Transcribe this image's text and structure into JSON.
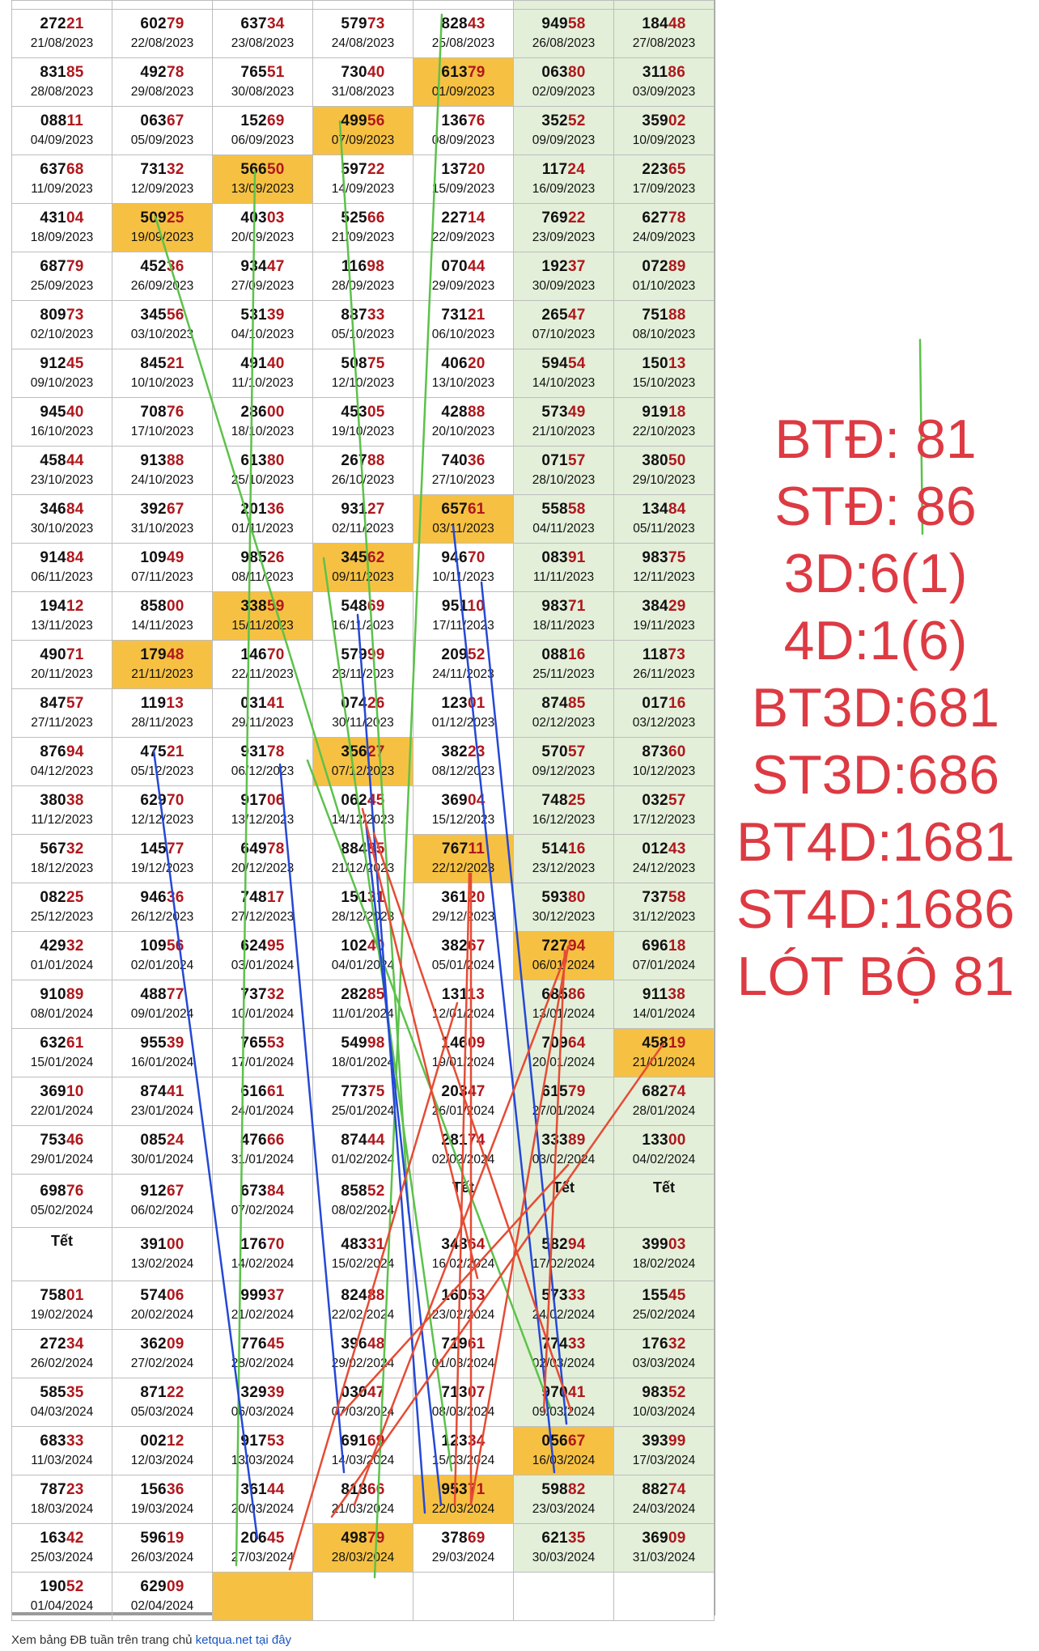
{
  "colors": {
    "number_tail": "#b0171c",
    "highlight": "#f6c143",
    "weekend": "#e3efd9",
    "summary_text": "#dd3a43",
    "line_green": "#5cc24a",
    "line_blue": "#2548d6",
    "line_red": "#e64b34"
  },
  "rows": [
    [
      {
        "num": "27221",
        "date": "21/08/2023"
      },
      {
        "num": "60279",
        "date": "22/08/2023"
      },
      {
        "num": "63734",
        "date": "23/08/2023"
      },
      {
        "num": "57973",
        "date": "24/08/2023"
      },
      {
        "num": "82843",
        "date": "25/08/2023"
      },
      {
        "num": "94958",
        "date": "26/08/2023"
      },
      {
        "num": "18448",
        "date": "27/08/2023"
      }
    ],
    [
      {
        "num": "83185",
        "date": "28/08/2023"
      },
      {
        "num": "49278",
        "date": "29/08/2023"
      },
      {
        "num": "76551",
        "date": "30/08/2023"
      },
      {
        "num": "73040",
        "date": "31/08/2023"
      },
      {
        "num": "61379",
        "date": "01/09/2023",
        "hl": true
      },
      {
        "num": "06380",
        "date": "02/09/2023"
      },
      {
        "num": "31186",
        "date": "03/09/2023"
      }
    ],
    [
      {
        "num": "08811",
        "date": "04/09/2023"
      },
      {
        "num": "06367",
        "date": "05/09/2023"
      },
      {
        "num": "15269",
        "date": "06/09/2023"
      },
      {
        "num": "49956",
        "date": "07/09/2023",
        "hl": true
      },
      {
        "num": "13676",
        "date": "08/09/2023"
      },
      {
        "num": "35252",
        "date": "09/09/2023"
      },
      {
        "num": "35902",
        "date": "10/09/2023"
      }
    ],
    [
      {
        "num": "63768",
        "date": "11/09/2023"
      },
      {
        "num": "73132",
        "date": "12/09/2023"
      },
      {
        "num": "56650",
        "date": "13/09/2023",
        "hl": true
      },
      {
        "num": "59722",
        "date": "14/09/2023"
      },
      {
        "num": "13720",
        "date": "15/09/2023"
      },
      {
        "num": "11724",
        "date": "16/09/2023"
      },
      {
        "num": "22365",
        "date": "17/09/2023"
      }
    ],
    [
      {
        "num": "43104",
        "date": "18/09/2023"
      },
      {
        "num": "50925",
        "date": "19/09/2023",
        "hl": true
      },
      {
        "num": "40303",
        "date": "20/09/2023"
      },
      {
        "num": "52566",
        "date": "21/09/2023"
      },
      {
        "num": "22714",
        "date": "22/09/2023"
      },
      {
        "num": "76922",
        "date": "23/09/2023"
      },
      {
        "num": "62778",
        "date": "24/09/2023"
      }
    ],
    [
      {
        "num": "68779",
        "date": "25/09/2023"
      },
      {
        "num": "45236",
        "date": "26/09/2023"
      },
      {
        "num": "93447",
        "date": "27/09/2023"
      },
      {
        "num": "11698",
        "date": "28/09/2023"
      },
      {
        "num": "07044",
        "date": "29/09/2023"
      },
      {
        "num": "19237",
        "date": "30/09/2023"
      },
      {
        "num": "07289",
        "date": "01/10/2023"
      }
    ],
    [
      {
        "num": "80973",
        "date": "02/10/2023"
      },
      {
        "num": "34556",
        "date": "03/10/2023"
      },
      {
        "num": "53139",
        "date": "04/10/2023"
      },
      {
        "num": "88733",
        "date": "05/10/2023"
      },
      {
        "num": "73121",
        "date": "06/10/2023"
      },
      {
        "num": "26547",
        "date": "07/10/2023"
      },
      {
        "num": "75188",
        "date": "08/10/2023"
      }
    ],
    [
      {
        "num": "91245",
        "date": "09/10/2023"
      },
      {
        "num": "84521",
        "date": "10/10/2023"
      },
      {
        "num": "49140",
        "date": "11/10/2023"
      },
      {
        "num": "50875",
        "date": "12/10/2023"
      },
      {
        "num": "40620",
        "date": "13/10/2023"
      },
      {
        "num": "59454",
        "date": "14/10/2023"
      },
      {
        "num": "15013",
        "date": "15/10/2023"
      }
    ],
    [
      {
        "num": "94540",
        "date": "16/10/2023"
      },
      {
        "num": "70876",
        "date": "17/10/2023"
      },
      {
        "num": "28600",
        "date": "18/10/2023"
      },
      {
        "num": "45305",
        "date": "19/10/2023"
      },
      {
        "num": "42888",
        "date": "20/10/2023"
      },
      {
        "num": "57349",
        "date": "21/10/2023"
      },
      {
        "num": "91918",
        "date": "22/10/2023"
      }
    ],
    [
      {
        "num": "45844",
        "date": "23/10/2023"
      },
      {
        "num": "91388",
        "date": "24/10/2023"
      },
      {
        "num": "61380",
        "date": "25/10/2023"
      },
      {
        "num": "26788",
        "date": "26/10/2023"
      },
      {
        "num": "74036",
        "date": "27/10/2023"
      },
      {
        "num": "07157",
        "date": "28/10/2023"
      },
      {
        "num": "38050",
        "date": "29/10/2023"
      }
    ],
    [
      {
        "num": "34684",
        "date": "30/10/2023"
      },
      {
        "num": "39267",
        "date": "31/10/2023"
      },
      {
        "num": "20136",
        "date": "01/11/2023"
      },
      {
        "num": "93127",
        "date": "02/11/2023"
      },
      {
        "num": "65761",
        "date": "03/11/2023",
        "hl": true
      },
      {
        "num": "55858",
        "date": "04/11/2023"
      },
      {
        "num": "13484",
        "date": "05/11/2023"
      }
    ],
    [
      {
        "num": "91484",
        "date": "06/11/2023"
      },
      {
        "num": "10949",
        "date": "07/11/2023"
      },
      {
        "num": "98526",
        "date": "08/11/2023"
      },
      {
        "num": "34562",
        "date": "09/11/2023",
        "hl": true
      },
      {
        "num": "94670",
        "date": "10/11/2023"
      },
      {
        "num": "08391",
        "date": "11/11/2023"
      },
      {
        "num": "98375",
        "date": "12/11/2023"
      }
    ],
    [
      {
        "num": "19412",
        "date": "13/11/2023"
      },
      {
        "num": "85800",
        "date": "14/11/2023"
      },
      {
        "num": "33859",
        "date": "15/11/2023",
        "hl": true
      },
      {
        "num": "54869",
        "date": "16/11/2023"
      },
      {
        "num": "95110",
        "date": "17/11/2023"
      },
      {
        "num": "98371",
        "date": "18/11/2023"
      },
      {
        "num": "38429",
        "date": "19/11/2023"
      }
    ],
    [
      {
        "num": "49071",
        "date": "20/11/2023"
      },
      {
        "num": "17948",
        "date": "21/11/2023",
        "hl": true
      },
      {
        "num": "14670",
        "date": "22/11/2023"
      },
      {
        "num": "57999",
        "date": "23/11/2023"
      },
      {
        "num": "20952",
        "date": "24/11/2023"
      },
      {
        "num": "08816",
        "date": "25/11/2023"
      },
      {
        "num": "11873",
        "date": "26/11/2023"
      }
    ],
    [
      {
        "num": "84757",
        "date": "27/11/2023"
      },
      {
        "num": "11913",
        "date": "28/11/2023"
      },
      {
        "num": "03141",
        "date": "29/11/2023"
      },
      {
        "num": "07426",
        "date": "30/11/2023"
      },
      {
        "num": "12301",
        "date": "01/12/2023"
      },
      {
        "num": "87485",
        "date": "02/12/2023"
      },
      {
        "num": "01716",
        "date": "03/12/2023"
      }
    ],
    [
      {
        "num": "87694",
        "date": "04/12/2023"
      },
      {
        "num": "47521",
        "date": "05/12/2023"
      },
      {
        "num": "93178",
        "date": "06/12/2023"
      },
      {
        "num": "35627",
        "date": "07/12/2023",
        "hl": true
      },
      {
        "num": "38223",
        "date": "08/12/2023"
      },
      {
        "num": "57057",
        "date": "09/12/2023"
      },
      {
        "num": "87360",
        "date": "10/12/2023"
      }
    ],
    [
      {
        "num": "38038",
        "date": "11/12/2023"
      },
      {
        "num": "62970",
        "date": "12/12/2023"
      },
      {
        "num": "91706",
        "date": "13/12/2023"
      },
      {
        "num": "06245",
        "date": "14/12/2023"
      },
      {
        "num": "36904",
        "date": "15/12/2023"
      },
      {
        "num": "74825",
        "date": "16/12/2023"
      },
      {
        "num": "03257",
        "date": "17/12/2023"
      }
    ],
    [
      {
        "num": "56732",
        "date": "18/12/2023"
      },
      {
        "num": "14577",
        "date": "19/12/2023"
      },
      {
        "num": "64978",
        "date": "20/12/2023"
      },
      {
        "num": "88485",
        "date": "21/12/2023"
      },
      {
        "num": "76711",
        "date": "22/12/2023",
        "hl": true
      },
      {
        "num": "51416",
        "date": "23/12/2023"
      },
      {
        "num": "01243",
        "date": "24/12/2023"
      }
    ],
    [
      {
        "num": "08225",
        "date": "25/12/2023"
      },
      {
        "num": "94636",
        "date": "26/12/2023"
      },
      {
        "num": "74817",
        "date": "27/12/2023"
      },
      {
        "num": "15131",
        "date": "28/12/2023"
      },
      {
        "num": "36120",
        "date": "29/12/2023"
      },
      {
        "num": "59380",
        "date": "30/12/2023"
      },
      {
        "num": "73758",
        "date": "31/12/2023"
      }
    ],
    [
      {
        "num": "42932",
        "date": "01/01/2024"
      },
      {
        "num": "10956",
        "date": "02/01/2024"
      },
      {
        "num": "62495",
        "date": "03/01/2024"
      },
      {
        "num": "10240",
        "date": "04/01/2024"
      },
      {
        "num": "38267",
        "date": "05/01/2024"
      },
      {
        "num": "72794",
        "date": "06/01/2024",
        "hl": true
      },
      {
        "num": "69618",
        "date": "07/01/2024"
      }
    ],
    [
      {
        "num": "91089",
        "date": "08/01/2024"
      },
      {
        "num": "48877",
        "date": "09/01/2024"
      },
      {
        "num": "73732",
        "date": "10/01/2024"
      },
      {
        "num": "28285",
        "date": "11/01/2024"
      },
      {
        "num": "13113",
        "date": "12/01/2024"
      },
      {
        "num": "68586",
        "date": "13/01/2024"
      },
      {
        "num": "91138",
        "date": "14/01/2024"
      }
    ],
    [
      {
        "num": "63261",
        "date": "15/01/2024"
      },
      {
        "num": "95539",
        "date": "16/01/2024"
      },
      {
        "num": "76553",
        "date": "17/01/2024"
      },
      {
        "num": "54998",
        "date": "18/01/2024"
      },
      {
        "num": "14609",
        "date": "19/01/2024"
      },
      {
        "num": "70964",
        "date": "20/01/2024"
      },
      {
        "num": "45819",
        "date": "21/01/2024",
        "hl": true
      }
    ],
    [
      {
        "num": "36910",
        "date": "22/01/2024"
      },
      {
        "num": "87441",
        "date": "23/01/2024"
      },
      {
        "num": "61661",
        "date": "24/01/2024"
      },
      {
        "num": "77375",
        "date": "25/01/2024"
      },
      {
        "num": "20347",
        "date": "26/01/2024"
      },
      {
        "num": "61579",
        "date": "27/01/2024"
      },
      {
        "num": "68274",
        "date": "28/01/2024"
      }
    ],
    [
      {
        "num": "75346",
        "date": "29/01/2024"
      },
      {
        "num": "08524",
        "date": "30/01/2024"
      },
      {
        "num": "47666",
        "date": "31/01/2024"
      },
      {
        "num": "87444",
        "date": "01/02/2024"
      },
      {
        "num": "28174",
        "date": "02/02/2024"
      },
      {
        "num": "33389",
        "date": "03/02/2024"
      },
      {
        "num": "13300",
        "date": "04/02/2024"
      }
    ],
    [
      {
        "num": "69876",
        "date": "05/02/2024"
      },
      {
        "num": "91267",
        "date": "06/02/2024"
      },
      {
        "num": "67384",
        "date": "07/02/2024"
      },
      {
        "num": "85852",
        "date": "08/02/2024"
      },
      {
        "tet": "Tết"
      },
      {
        "tet": "Tết"
      },
      {
        "tet": "Tết"
      }
    ],
    [
      {
        "tet": "Tết"
      },
      {
        "num": "39100",
        "date": "13/02/2024"
      },
      {
        "num": "17670",
        "date": "14/02/2024"
      },
      {
        "num": "48331",
        "date": "15/02/2024"
      },
      {
        "num": "34864",
        "date": "16/02/2024"
      },
      {
        "num": "58294",
        "date": "17/02/2024"
      },
      {
        "num": "39903",
        "date": "18/02/2024"
      }
    ],
    [
      {
        "num": "75801",
        "date": "19/02/2024"
      },
      {
        "num": "57406",
        "date": "20/02/2024"
      },
      {
        "num": "99937",
        "date": "21/02/2024"
      },
      {
        "num": "82488",
        "date": "22/02/2024"
      },
      {
        "num": "16053",
        "date": "23/02/2024"
      },
      {
        "num": "57333",
        "date": "24/02/2024"
      },
      {
        "num": "15545",
        "date": "25/02/2024"
      }
    ],
    [
      {
        "num": "27234",
        "date": "26/02/2024"
      },
      {
        "num": "36209",
        "date": "27/02/2024"
      },
      {
        "num": "77645",
        "date": "28/02/2024"
      },
      {
        "num": "39648",
        "date": "29/02/2024"
      },
      {
        "num": "71961",
        "date": "01/03/2024"
      },
      {
        "num": "77433",
        "date": "02/03/2024"
      },
      {
        "num": "17632",
        "date": "03/03/2024"
      }
    ],
    [
      {
        "num": "58535",
        "date": "04/03/2024"
      },
      {
        "num": "87122",
        "date": "05/03/2024"
      },
      {
        "num": "32939",
        "date": "06/03/2024"
      },
      {
        "num": "03047",
        "date": "07/03/2024"
      },
      {
        "num": "71307",
        "date": "08/03/2024"
      },
      {
        "num": "97041",
        "date": "09/03/2024"
      },
      {
        "num": "98352",
        "date": "10/03/2024"
      }
    ],
    [
      {
        "num": "68333",
        "date": "11/03/2024"
      },
      {
        "num": "00212",
        "date": "12/03/2024"
      },
      {
        "num": "91753",
        "date": "13/03/2024"
      },
      {
        "num": "69169",
        "date": "14/03/2024"
      },
      {
        "num": "12334",
        "date": "15/03/2024"
      },
      {
        "num": "05667",
        "date": "16/03/2024",
        "hl": true
      },
      {
        "num": "39399",
        "date": "17/03/2024"
      }
    ],
    [
      {
        "num": "78723",
        "date": "18/03/2024"
      },
      {
        "num": "15636",
        "date": "19/03/2024"
      },
      {
        "num": "36144",
        "date": "20/03/2024"
      },
      {
        "num": "81866",
        "date": "21/03/2024"
      },
      {
        "num": "95371",
        "date": "22/03/2024",
        "hl": true
      },
      {
        "num": "59882",
        "date": "23/03/2024"
      },
      {
        "num": "88274",
        "date": "24/03/2024"
      }
    ],
    [
      {
        "num": "16342",
        "date": "25/03/2024"
      },
      {
        "num": "59619",
        "date": "26/03/2024"
      },
      {
        "num": "20645",
        "date": "27/03/2024"
      },
      {
        "num": "49879",
        "date": "28/03/2024",
        "hl": true
      },
      {
        "num": "37869",
        "date": "29/03/2024"
      },
      {
        "num": "62135",
        "date": "30/03/2024"
      },
      {
        "num": "36909",
        "date": "31/03/2024"
      }
    ],
    [
      {
        "num": "19052",
        "date": "01/04/2024"
      },
      {
        "num": "62909",
        "date": "02/04/2024"
      },
      {
        "hlblank": true
      },
      {
        "blank": true
      },
      {
        "blank": true
      },
      {
        "blank": true
      },
      {
        "blank": true
      }
    ]
  ],
  "summary": [
    "BTĐ: 81",
    "STĐ: 86",
    "3D:6(1)",
    "4D:1(6)",
    "BT3D:681",
    "ST3D:686",
    "BT4D:1681",
    "ST4D:1686",
    "LÓT BỘ 81"
  ],
  "footer": {
    "text": "Xem bảng ĐB tuần trên trang chủ ",
    "link_text": "ketqua.net tại đây"
  }
}
